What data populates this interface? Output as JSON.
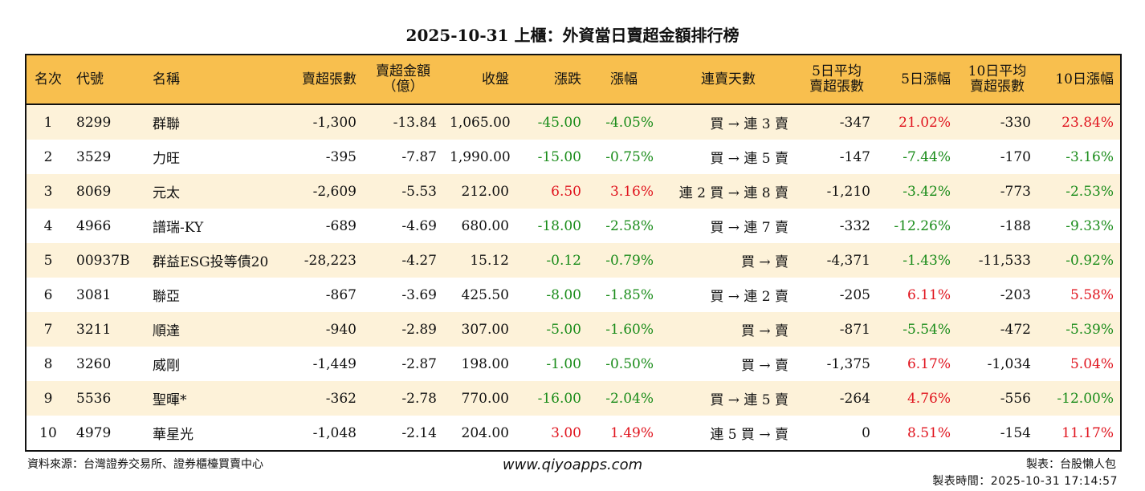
{
  "title": "2025-10-31 上櫃：外資當日賣超金額排行榜",
  "headers": [
    "名次",
    "代號",
    "名稱",
    "賣超張數",
    "賣超金額\n（億）",
    "收盤",
    "漲跌",
    "漲幅",
    "連賣天數",
    "5日平均\n賣超張數",
    "5日漲幅",
    "10日平均\n賣超張數",
    "10日漲幅"
  ],
  "colors": {
    "header_bg": "#f8bf4e",
    "row_alt": "#fdf2d9",
    "up": "#e0141e",
    "down": "#1a8c1a"
  },
  "rows": [
    [
      "1",
      "8299",
      "群聯",
      "-1,300",
      "-13.84",
      "1,065.00",
      "-45.00",
      "-4.05%",
      "買 → 連 3 賣",
      "-347",
      "21.02%",
      "-330",
      "23.84%"
    ],
    [
      "2",
      "3529",
      "力旺",
      "-395",
      "-7.87",
      "1,990.00",
      "-15.00",
      "-0.75%",
      "買 → 連 5 賣",
      "-147",
      "-7.44%",
      "-170",
      "-3.16%"
    ],
    [
      "3",
      "8069",
      "元太",
      "-2,609",
      "-5.53",
      "212.00",
      "6.50",
      "3.16%",
      "連 2 買 → 連 8 賣",
      "-1,210",
      "-3.42%",
      "-773",
      "-2.53%"
    ],
    [
      "4",
      "4966",
      "譜瑞-KY",
      "-689",
      "-4.69",
      "680.00",
      "-18.00",
      "-2.58%",
      "買 → 連 7 賣",
      "-332",
      "-12.26%",
      "-188",
      "-9.33%"
    ],
    [
      "5",
      "00937B",
      "群益ESG投等債20",
      "-28,223",
      "-4.27",
      "15.12",
      "-0.12",
      "-0.79%",
      "買 → 賣",
      "-4,371",
      "-1.43%",
      "-11,533",
      "-0.92%"
    ],
    [
      "6",
      "3081",
      "聯亞",
      "-867",
      "-3.69",
      "425.50",
      "-8.00",
      "-1.85%",
      "買 → 連 2 賣",
      "-205",
      "6.11%",
      "-203",
      "5.58%"
    ],
    [
      "7",
      "3211",
      "順達",
      "-940",
      "-2.89",
      "307.00",
      "-5.00",
      "-1.60%",
      "買 → 賣",
      "-871",
      "-5.54%",
      "-472",
      "-5.39%"
    ],
    [
      "8",
      "3260",
      "威剛",
      "-1,449",
      "-2.87",
      "198.00",
      "-1.00",
      "-0.50%",
      "買 → 賣",
      "-1,375",
      "6.17%",
      "-1,034",
      "5.04%"
    ],
    [
      "9",
      "5536",
      "聖暉*",
      "-362",
      "-2.78",
      "770.00",
      "-16.00",
      "-2.04%",
      "買 → 連 5 賣",
      "-264",
      "4.76%",
      "-556",
      "-12.00%"
    ],
    [
      "10",
      "4979",
      "華星光",
      "-1,048",
      "-2.14",
      "204.00",
      "3.00",
      "1.49%",
      "連 5 買 → 賣",
      "0",
      "8.51%",
      "-154",
      "11.17%"
    ]
  ],
  "footer": {
    "source": "資料來源：台灣證券交易所、證券櫃檯買賣中心",
    "website": "www.qiyoapps.com",
    "author": "製表：台股懶人包",
    "time": "製表時間：2025-10-31 17:14:57"
  }
}
